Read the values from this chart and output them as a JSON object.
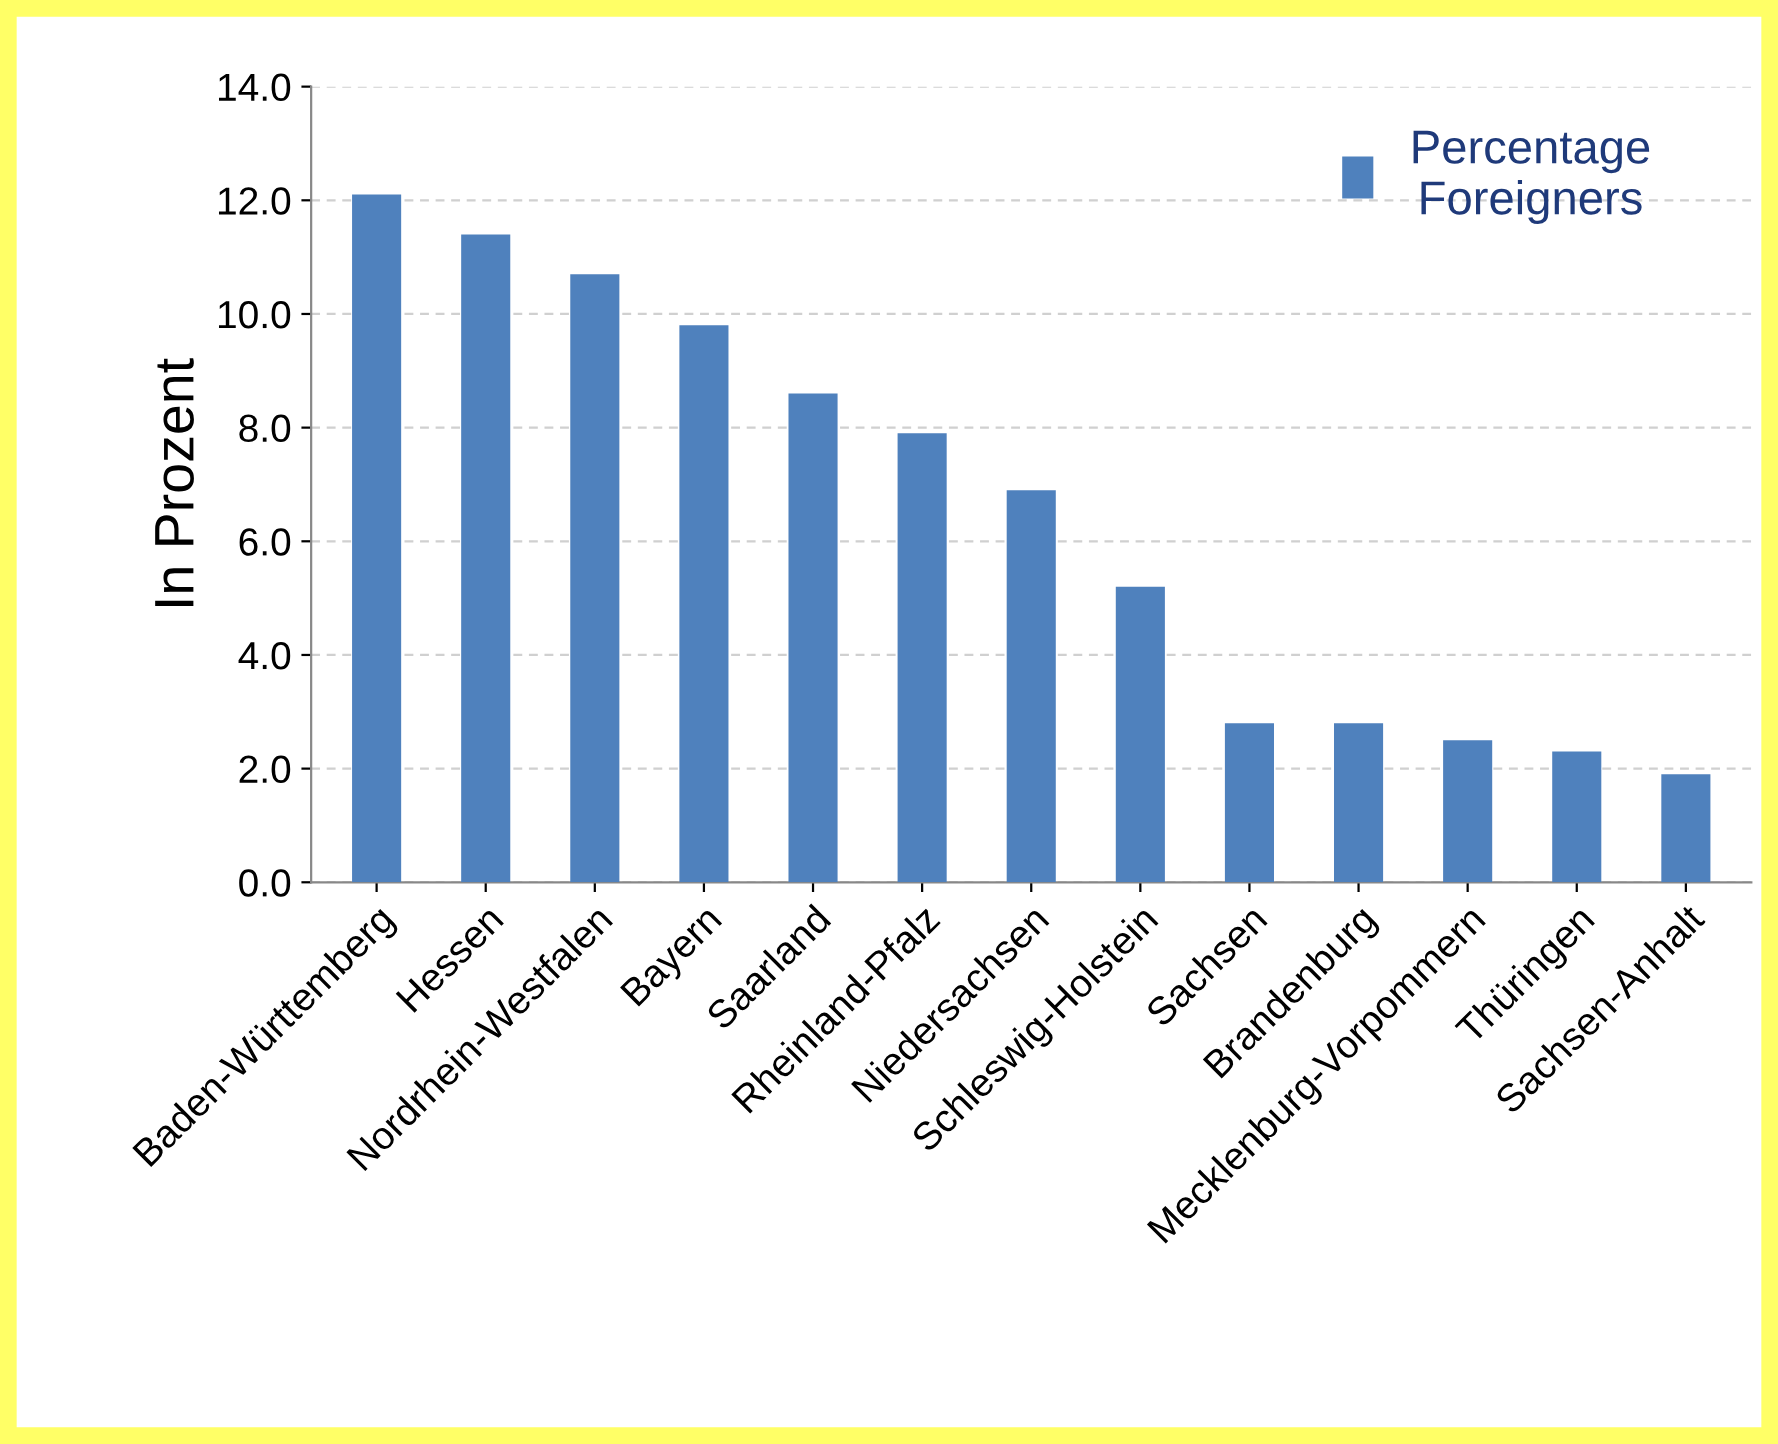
{
  "chart_data": {
    "type": "bar",
    "ylabel": "In Prozent",
    "categories": [
      "Baden-Württemberg",
      "Hessen",
      "Nordrhein-Westfalen",
      "Bayern",
      "Saarland",
      "Rheinland-Pfalz",
      "Niedersachsen",
      "Schleswig-Holstein",
      "Sachsen",
      "Brandenburg",
      "Mecklenburg-Vorpommern",
      "Thüringen",
      "Sachsen-Anhalt"
    ],
    "series": [
      {
        "name": "Percentage\nForeigners",
        "color": "#4f81bd",
        "values": [
          12.1,
          11.4,
          10.7,
          9.8,
          8.6,
          7.9,
          6.9,
          5.2,
          2.8,
          2.8,
          2.5,
          2.3,
          1.9
        ]
      }
    ],
    "ylim": [
      0,
      14
    ],
    "yticks": [
      {
        "value": 0,
        "label": "0.0"
      },
      {
        "value": 2,
        "label": "2.0"
      },
      {
        "value": 4,
        "label": "4.0"
      },
      {
        "value": 6,
        "label": "6.0"
      },
      {
        "value": 8,
        "label": "8.0"
      },
      {
        "value": 10,
        "label": "10.0"
      },
      {
        "value": 12,
        "label": "12.0"
      },
      {
        "value": 14,
        "label": "14.0"
      }
    ],
    "grid": "y",
    "legend": "top right"
  }
}
